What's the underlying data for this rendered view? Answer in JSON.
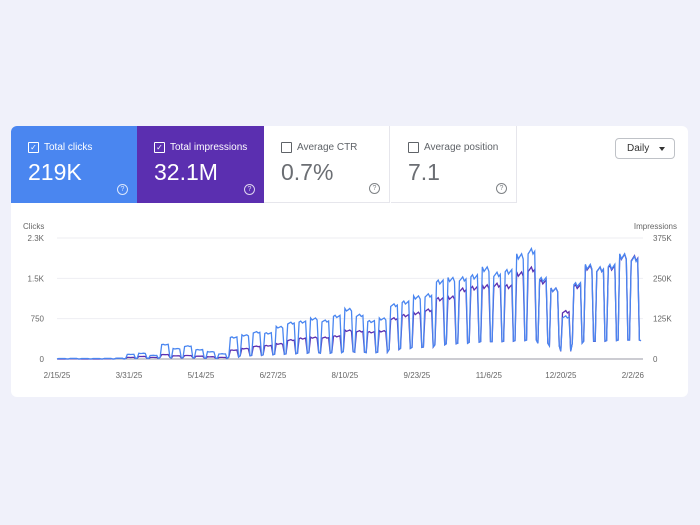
{
  "metrics": [
    {
      "label": "Total clicks",
      "value": "219K",
      "checked": true,
      "color": "#4a86f0"
    },
    {
      "label": "Total impressions",
      "value": "32.1M",
      "checked": true,
      "color": "#5b2fb0"
    },
    {
      "label": "Average CTR",
      "value": "0.7%",
      "checked": false
    },
    {
      "label": "Average position",
      "value": "7.1",
      "checked": false
    }
  ],
  "help_icon": "question-circle-icon",
  "period_select": {
    "value": "Daily"
  },
  "chart_data": {
    "type": "line",
    "granularity": "daily",
    "left_axis": {
      "label": "Clicks",
      "ticks": [
        "0",
        "750",
        "1.5K",
        "2.3K"
      ],
      "range": [
        0,
        2300
      ]
    },
    "right_axis": {
      "label": "Impressions",
      "ticks": [
        "0",
        "125K",
        "250K",
        "375K"
      ],
      "range": [
        0,
        375000
      ]
    },
    "x_ticks": [
      "2/15/25",
      "3/31/25",
      "5/14/25",
      "6/27/25",
      "8/10/25",
      "9/23/25",
      "11/6/25",
      "12/20/25",
      "2/2/26"
    ],
    "x_range": [
      "2025-02-15",
      "2026-02-07"
    ],
    "grid": true,
    "series": [
      {
        "axis": "left",
        "color": "#4a86f0",
        "weekday_peaks": [
          10,
          12,
          10,
          10,
          12,
          15,
          90,
          110,
          70,
          280,
          200,
          250,
          180,
          140,
          100,
          420,
          460,
          520,
          500,
          620,
          700,
          720,
          780,
          740,
          830,
          960,
          850,
          730,
          780,
          1050,
          1100,
          1200,
          1240,
          1500,
          1550,
          1560,
          1600,
          1750,
          1650,
          1700,
          2000,
          2100,
          1550,
          1350,
          820,
          1450,
          1800,
          1750,
          1800,
          2000,
          1950,
          1850
        ],
        "weekend_lows": [
          0,
          0,
          0,
          0,
          0,
          0,
          10,
          15,
          10,
          30,
          20,
          25,
          20,
          15,
          10,
          40,
          60,
          70,
          80,
          90,
          100,
          110,
          120,
          110,
          120,
          140,
          130,
          120,
          130,
          180,
          200,
          220,
          230,
          270,
          290,
          300,
          320,
          330,
          330,
          340,
          350,
          360,
          300,
          250,
          150,
          300,
          340,
          340,
          350,
          360,
          360,
          350
        ]
      },
      {
        "axis": "right",
        "color": "#5b2fb0",
        "weekday_peaks": [
          0,
          1000,
          0,
          0,
          1000,
          2000,
          5000,
          8000,
          5000,
          14000,
          10000,
          11000,
          9000,
          7000,
          5000,
          28000,
          33000,
          40000,
          42000,
          48000,
          60000,
          65000,
          68000,
          68000,
          72000,
          90000,
          88000,
          85000,
          88000,
          128000,
          138000,
          145000,
          155000,
          190000,
          195000,
          220000,
          225000,
          230000,
          235000,
          230000,
          270000,
          285000,
          245000,
          220000,
          150000,
          230000,
          290000,
          285000,
          290000,
          325000,
          320000,
          315000
        ],
        "weekend_lows": [
          0,
          0,
          0,
          0,
          0,
          0,
          2000,
          2000,
          2000,
          5000,
          3000,
          4000,
          3000,
          2000,
          2000,
          6000,
          10000,
          11000,
          13000,
          15000,
          16000,
          18000,
          20000,
          18000,
          20000,
          23000,
          21000,
          20000,
          21000,
          29000,
          33000,
          36000,
          37000,
          44000,
          47000,
          49000,
          52000,
          54000,
          54000,
          55000,
          57000,
          59000,
          49000,
          41000,
          24000,
          49000,
          55000,
          55000,
          57000,
          59000,
          59000,
          57000
        ]
      }
    ]
  }
}
